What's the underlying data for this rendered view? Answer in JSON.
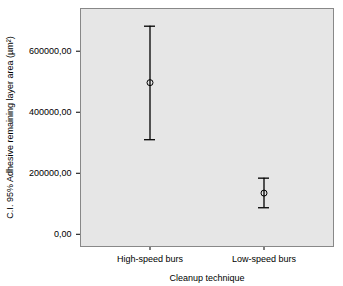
{
  "chart_data": {
    "type": "errorbar",
    "x_label": "Cleanup technique",
    "y_label": "C.I. 95% Adhesive remaining layer area (µm²)",
    "categories": [
      "High-speed burs",
      "Low-speed burs"
    ],
    "values": [
      497000,
      135000
    ],
    "ci_lower": [
      310000,
      87000
    ],
    "ci_upper": [
      682000,
      184000
    ],
    "color": "#000000",
    "ylim": [
      -40000,
      740000
    ],
    "yticks": [
      {
        "value": 0,
        "label": "0,00"
      },
      {
        "value": 200000,
        "label": "200000,00"
      },
      {
        "value": 400000,
        "label": "400000,00"
      },
      {
        "value": 600000,
        "label": "600000,00"
      }
    ],
    "grid": false
  }
}
